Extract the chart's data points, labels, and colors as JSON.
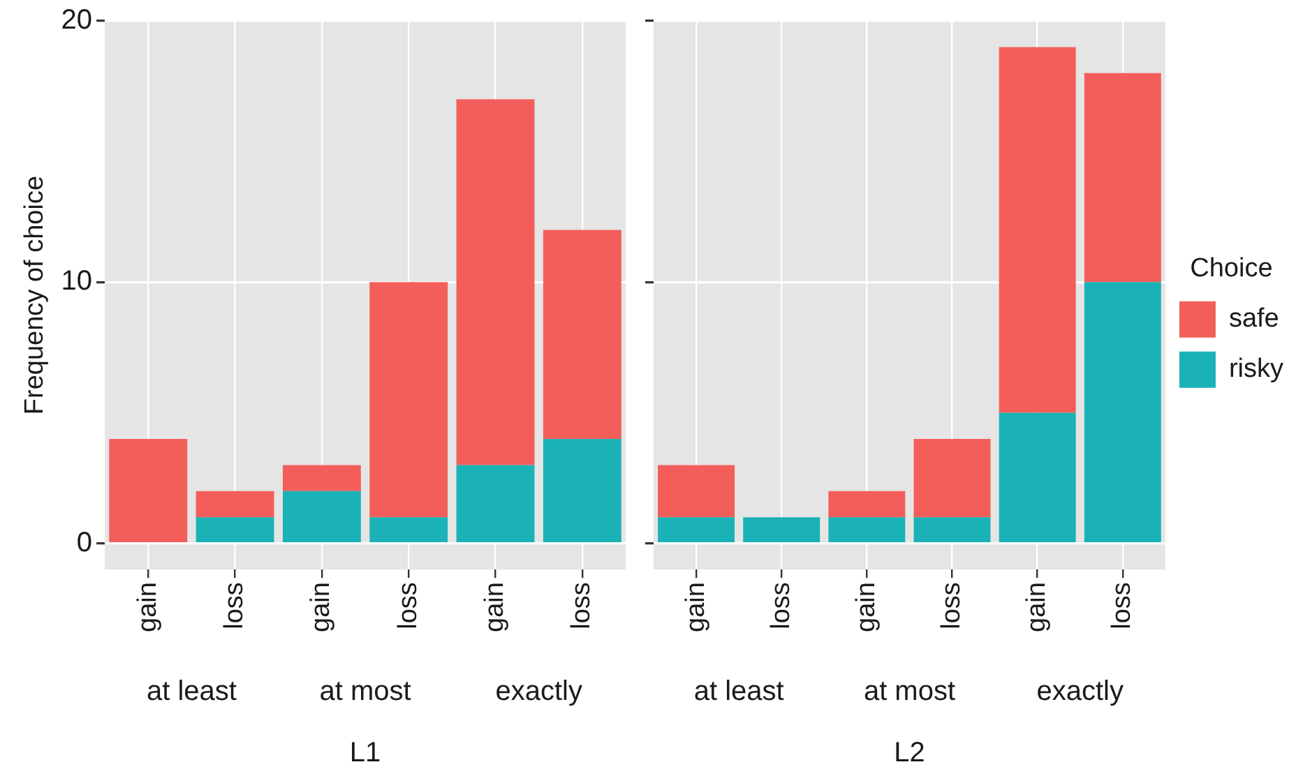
{
  "chart_data": [
    {
      "type": "bar",
      "stacked": true,
      "ylabel": "Frequency of choice",
      "xlabel": "L1",
      "categories": [
        "gain",
        "loss",
        "gain",
        "loss",
        "gain",
        "loss"
      ],
      "annotations": [
        "at least",
        "at most",
        "exactly"
      ],
      "series": [
        {
          "color": "#1ab2b6",
          "values": [
            0,
            1,
            2,
            1,
            3,
            4
          ]
        },
        {
          "color": "#f35e5a",
          "values": [
            4,
            1,
            1,
            9,
            14,
            8
          ]
        }
      ],
      "ylim": [
        -1,
        20
      ],
      "yticks": [
        0,
        10,
        20
      ],
      "grid": true,
      "legend": false
    },
    {
      "type": "bar",
      "stacked": true,
      "xlabel": "L2",
      "legend_title": "Choice",
      "categories": [
        "gain",
        "loss",
        "gain",
        "loss",
        "gain",
        "loss"
      ],
      "annotations": [
        "at least",
        "at most",
        "exactly"
      ],
      "series": [
        {
          "name": "risky",
          "color": "#1ab2b6",
          "values": [
            1,
            1,
            1,
            1,
            5,
            10
          ]
        },
        {
          "name": "safe",
          "color": "#f35e5a",
          "values": [
            2,
            0,
            1,
            3,
            14,
            8
          ]
        }
      ],
      "ylim": [
        -1,
        20
      ],
      "yticks": [
        0,
        10,
        20
      ],
      "grid": true,
      "legend": "right",
      "tick_labels": "x"
    }
  ]
}
